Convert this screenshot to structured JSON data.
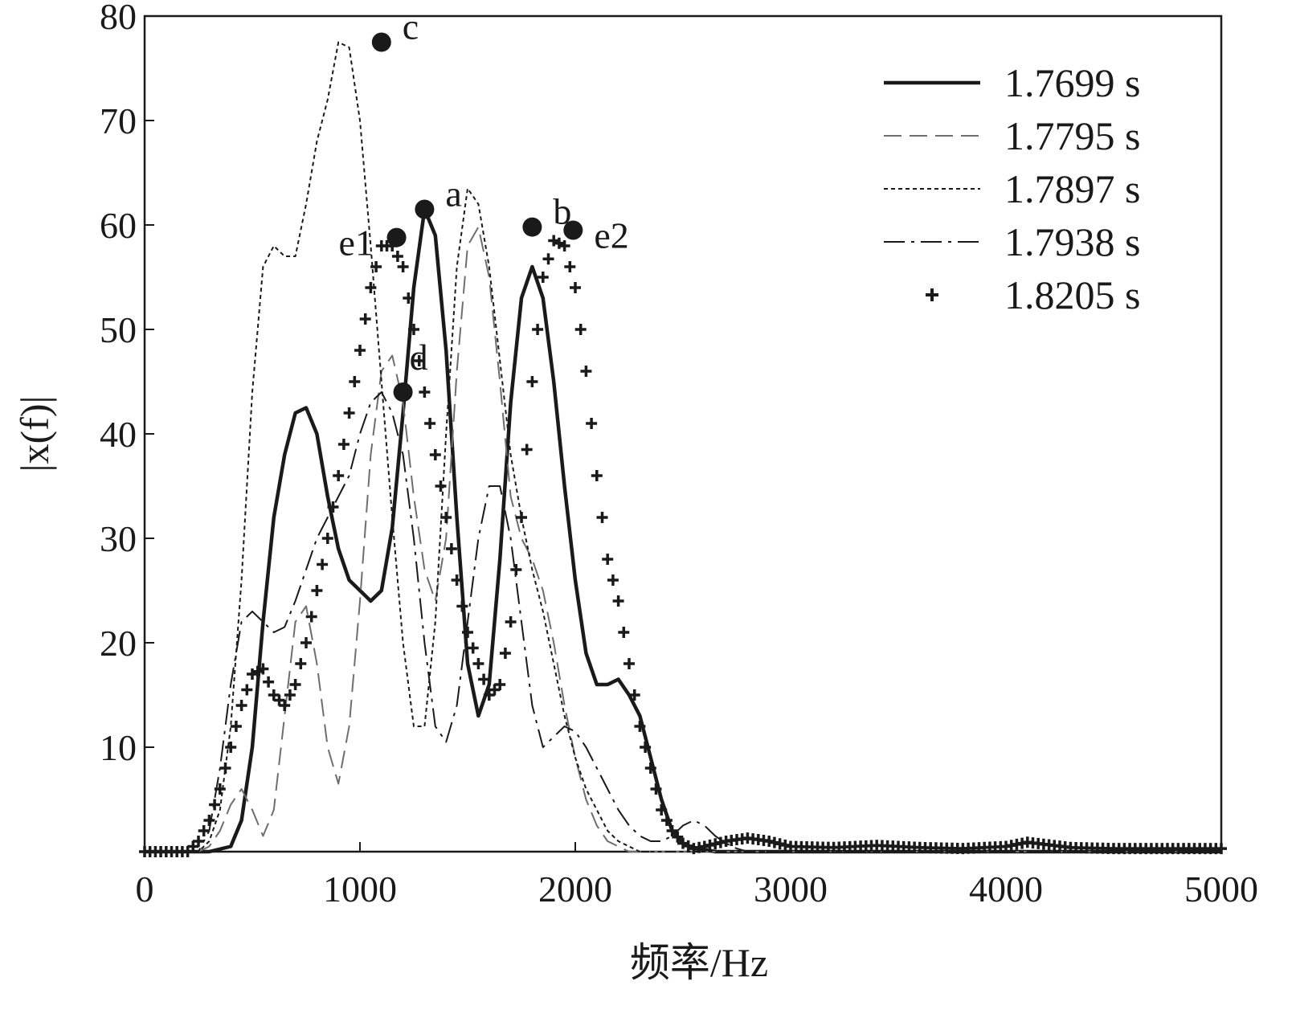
{
  "chart_data": {
    "type": "line",
    "xlabel": "频率/Hz",
    "ylabel": "|x(f)|",
    "xlim": [
      0,
      5000
    ],
    "ylim": [
      0,
      80
    ],
    "x_ticks": [
      0,
      1000,
      2000,
      3000,
      4000,
      5000
    ],
    "y_ticks": [
      10,
      20,
      30,
      40,
      50,
      60,
      70,
      80
    ],
    "grid": false,
    "legend_position": "top-right",
    "series": [
      {
        "name": "1.7699 s",
        "style": "solid-thick",
        "color": "#1a1a1a",
        "x": [
          0,
          300,
          400,
          450,
          500,
          550,
          600,
          650,
          700,
          750,
          800,
          850,
          900,
          950,
          1000,
          1050,
          1100,
          1150,
          1200,
          1250,
          1300,
          1350,
          1400,
          1450,
          1500,
          1550,
          1600,
          1650,
          1700,
          1750,
          1800,
          1850,
          1900,
          1950,
          2000,
          2050,
          2100,
          2150,
          2200,
          2250,
          2300,
          2350,
          2400,
          2450,
          2500,
          2550,
          2600,
          2650,
          2700,
          3000,
          5000
        ],
        "y": [
          0,
          0,
          0.5,
          3,
          10,
          22,
          32,
          38,
          42,
          42.5,
          40,
          34,
          29,
          26,
          25,
          24,
          25,
          31,
          42,
          54,
          61.5,
          59,
          48,
          32,
          18,
          13,
          16,
          28,
          43,
          53,
          56,
          53,
          45,
          35,
          26,
          19,
          16,
          16,
          16.5,
          15,
          13,
          9,
          5,
          2,
          0.8,
          0.3,
          0.2,
          0,
          0,
          0,
          0
        ]
      },
      {
        "name": "1.7795 s",
        "style": "dashed-long",
        "color": "#6e6e6e",
        "x": [
          0,
          250,
          300,
          350,
          400,
          450,
          500,
          550,
          600,
          650,
          700,
          750,
          800,
          850,
          900,
          950,
          1000,
          1050,
          1100,
          1150,
          1200,
          1250,
          1300,
          1350,
          1400,
          1450,
          1500,
          1550,
          1600,
          1650,
          1700,
          1750,
          1800,
          1850,
          1900,
          1950,
          2000,
          2050,
          2100,
          2150,
          2200,
          2250,
          2300,
          2350,
          2400,
          2450,
          2500,
          2550,
          2600,
          2650,
          2700,
          2800,
          5000
        ],
        "y": [
          0,
          0,
          0.5,
          2,
          4.5,
          6,
          4,
          1.5,
          4,
          13,
          22,
          23.5,
          18,
          10,
          6.5,
          12,
          24,
          38,
          46,
          47.5,
          43,
          34,
          27,
          24,
          30,
          46,
          58,
          59.8,
          55,
          45,
          34,
          30,
          28,
          25,
          20,
          14,
          9,
          5,
          2.5,
          1,
          0.5,
          0,
          0,
          0,
          0,
          0,
          0,
          0,
          0,
          0,
          0,
          0,
          0
        ]
      },
      {
        "name": "1.7897 s",
        "style": "dotted",
        "color": "#1a1a1a",
        "x": [
          0,
          250,
          300,
          350,
          400,
          450,
          500,
          550,
          600,
          650,
          700,
          750,
          800,
          850,
          900,
          950,
          1000,
          1050,
          1100,
          1150,
          1200,
          1250,
          1300,
          1350,
          1400,
          1450,
          1500,
          1550,
          1600,
          1650,
          1700,
          1750,
          1800,
          1850,
          1900,
          1950,
          2000,
          2050,
          2100,
          2150,
          2200,
          2250,
          2300,
          2350,
          2400,
          2450,
          2500,
          2550,
          2600,
          2700,
          5000
        ],
        "y": [
          0,
          0,
          1,
          4,
          12,
          26,
          44,
          56,
          58,
          57,
          57,
          62,
          68,
          72,
          77.5,
          77,
          70,
          58,
          45,
          32,
          20,
          12,
          12,
          22,
          40,
          56,
          63.5,
          62,
          56,
          47,
          38,
          32,
          27,
          23,
          18,
          13,
          9,
          6,
          4,
          2,
          1,
          0.5,
          0,
          0,
          0,
          0,
          0,
          0,
          0,
          0,
          0
        ]
      },
      {
        "name": "1.7938 s",
        "style": "dash-dot",
        "color": "#1a1a1a",
        "x": [
          0,
          250,
          300,
          350,
          400,
          450,
          500,
          550,
          600,
          650,
          700,
          750,
          800,
          850,
          900,
          950,
          1000,
          1050,
          1100,
          1150,
          1200,
          1250,
          1300,
          1350,
          1400,
          1450,
          1500,
          1550,
          1600,
          1650,
          1700,
          1750,
          1800,
          1850,
          1900,
          1950,
          2000,
          2050,
          2100,
          2150,
          2200,
          2250,
          2300,
          2350,
          2400,
          2450,
          2500,
          2550,
          2600,
          2650,
          2700,
          2750,
          2800,
          5000
        ],
        "y": [
          0,
          0,
          2,
          8,
          16,
          22,
          23,
          22,
          21,
          21.5,
          24,
          27,
          30,
          32,
          34,
          36,
          40,
          43,
          44,
          42,
          38,
          30,
          20,
          12,
          10.5,
          14,
          22,
          30,
          35,
          35,
          30,
          22,
          14,
          10,
          11,
          12,
          11.5,
          10,
          8,
          6,
          4,
          2.5,
          1.5,
          1,
          1,
          1.5,
          2.5,
          3,
          2.5,
          1.5,
          0.8,
          0.3,
          0,
          0
        ]
      },
      {
        "name": "1.8205 s",
        "style": "plus-markers",
        "color": "#1a1a1a",
        "x": [
          0,
          100,
          200,
          250,
          300,
          350,
          400,
          450,
          500,
          550,
          600,
          650,
          700,
          750,
          800,
          850,
          900,
          950,
          1000,
          1050,
          1100,
          1150,
          1200,
          1250,
          1300,
          1350,
          1400,
          1450,
          1500,
          1550,
          1600,
          1650,
          1700,
          1750,
          1800,
          1850,
          1900,
          1950,
          2000,
          2050,
          2100,
          2150,
          2200,
          2250,
          2300,
          2350,
          2400,
          2450,
          2500,
          2550,
          2600,
          2700,
          2800,
          2900,
          3000,
          3200,
          3400,
          3600,
          3800,
          4000,
          4100,
          4300,
          4500,
          4700,
          5000
        ],
        "y": [
          0,
          0,
          0,
          1,
          3,
          6,
          10,
          14,
          17,
          17.5,
          15,
          14,
          16,
          20,
          25,
          30,
          36,
          42,
          48,
          54,
          58,
          58,
          56,
          50,
          44,
          38,
          32,
          26,
          21,
          18,
          15,
          16,
          22,
          32,
          45,
          55,
          58.5,
          58,
          54,
          46,
          36,
          28,
          24,
          18,
          12,
          8,
          4,
          2,
          0.8,
          0.3,
          0.5,
          1,
          1.3,
          1,
          0.5,
          0.4,
          0.6,
          0.4,
          0.3,
          0.5,
          0.9,
          0.4,
          0.3,
          0.3,
          0.3
        ]
      }
    ],
    "annotations": [
      {
        "label": "c",
        "x": 1100,
        "y": 77.5
      },
      {
        "label": "a",
        "x": 1300,
        "y": 61.5
      },
      {
        "label": "b",
        "x": 1800,
        "y": 59.8
      },
      {
        "label": "e1",
        "x": 1170,
        "y": 58.8
      },
      {
        "label": "e2",
        "x": 1990,
        "y": 59.5
      },
      {
        "label": "d",
        "x": 1200,
        "y": 44
      }
    ]
  }
}
